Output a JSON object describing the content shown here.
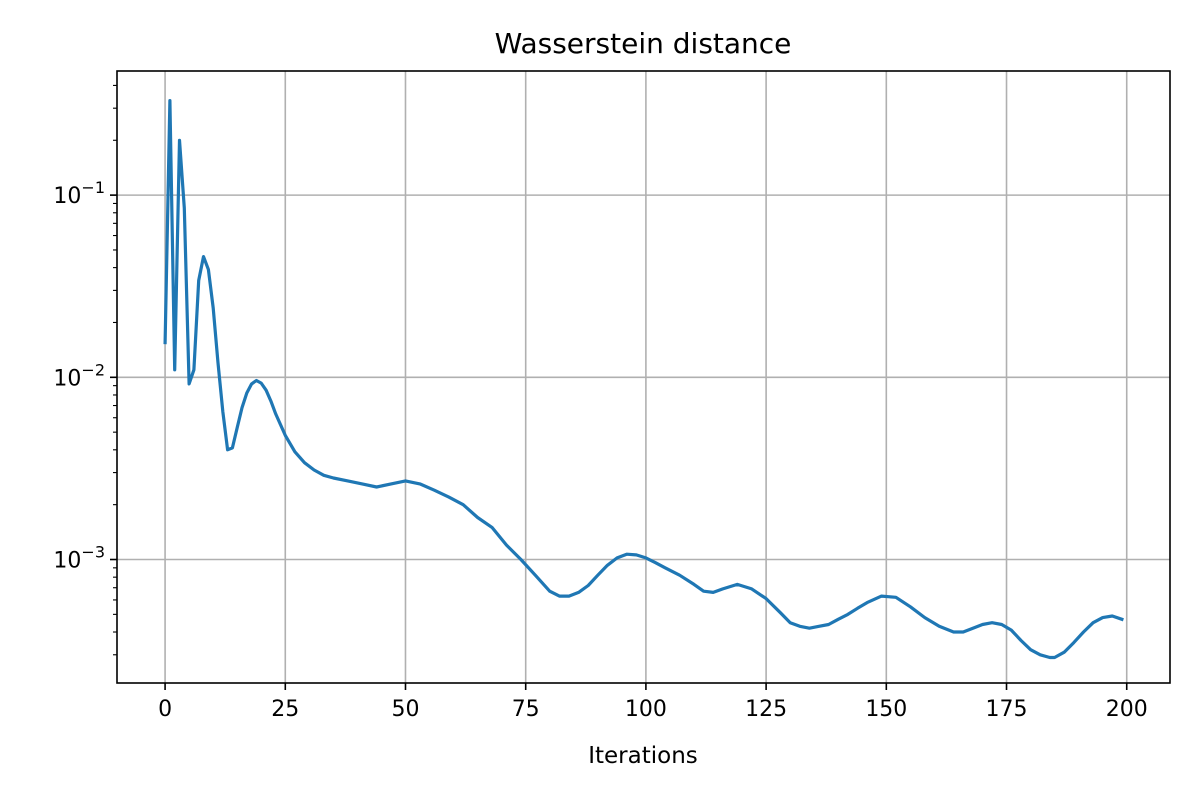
{
  "chart_data": {
    "type": "line",
    "title": "Wasserstein distance",
    "xlabel": "Iterations",
    "ylabel": "",
    "yscale": "log",
    "xlim": [
      -10,
      209
    ],
    "ylim": [
      0.00021,
      0.48
    ],
    "grid": true,
    "legend": "none",
    "x_ticks": [
      0,
      25,
      50,
      75,
      100,
      125,
      150,
      175,
      200
    ],
    "y_ticks": [
      {
        "value": 0.001,
        "base": "10",
        "exp": "−3"
      },
      {
        "value": 0.01,
        "base": "10",
        "exp": "−2"
      },
      {
        "value": 0.1,
        "base": "10",
        "exp": "−1"
      }
    ],
    "series": [
      {
        "color": "#1f77b4",
        "x": [
          0,
          1,
          2,
          3,
          4,
          5,
          6,
          7,
          8,
          9,
          10,
          11,
          12,
          13,
          14,
          15,
          16,
          17,
          18,
          19,
          20,
          21,
          22,
          23,
          24,
          25,
          27,
          29,
          31,
          33,
          35,
          38,
          41,
          44,
          47,
          50,
          53,
          56,
          59,
          62,
          65,
          68,
          71,
          74,
          77,
          80,
          82,
          84,
          86,
          88,
          90,
          92,
          94,
          96,
          98,
          100,
          102,
          104,
          107,
          110,
          112,
          114,
          116,
          119,
          122,
          125,
          128,
          130,
          132,
          134,
          136,
          138,
          140,
          142,
          144,
          146,
          149,
          152,
          155,
          158,
          161,
          164,
          166,
          168,
          170,
          172,
          174,
          176,
          178,
          180,
          182,
          184,
          185,
          187,
          189,
          191,
          193,
          195,
          197,
          199
        ],
        "y": [
          0.0155,
          0.33,
          0.011,
          0.2,
          0.085,
          0.0092,
          0.011,
          0.034,
          0.046,
          0.039,
          0.024,
          0.012,
          0.0065,
          0.004,
          0.0041,
          0.0053,
          0.0068,
          0.0082,
          0.0092,
          0.0096,
          0.0093,
          0.0085,
          0.0074,
          0.0063,
          0.0055,
          0.0048,
          0.0039,
          0.0034,
          0.0031,
          0.0029,
          0.0028,
          0.0027,
          0.0026,
          0.0025,
          0.0026,
          0.0027,
          0.0026,
          0.0024,
          0.0022,
          0.002,
          0.0017,
          0.0015,
          0.0012,
          0.001,
          0.00082,
          0.00067,
          0.00063,
          0.00063,
          0.00066,
          0.00072,
          0.00082,
          0.00093,
          0.00102,
          0.00107,
          0.00106,
          0.00102,
          0.00096,
          0.0009,
          0.00082,
          0.00073,
          0.00067,
          0.00066,
          0.00069,
          0.00073,
          0.00069,
          0.00061,
          0.00051,
          0.00045,
          0.00043,
          0.00042,
          0.00043,
          0.00044,
          0.00047,
          0.0005,
          0.00054,
          0.00058,
          0.00063,
          0.00062,
          0.00055,
          0.00048,
          0.00043,
          0.0004,
          0.0004,
          0.00042,
          0.00044,
          0.00045,
          0.00044,
          0.00041,
          0.00036,
          0.00032,
          0.0003,
          0.00029,
          0.00029,
          0.00031,
          0.00035,
          0.0004,
          0.00045,
          0.00048,
          0.00049,
          0.00047
        ]
      }
    ]
  }
}
